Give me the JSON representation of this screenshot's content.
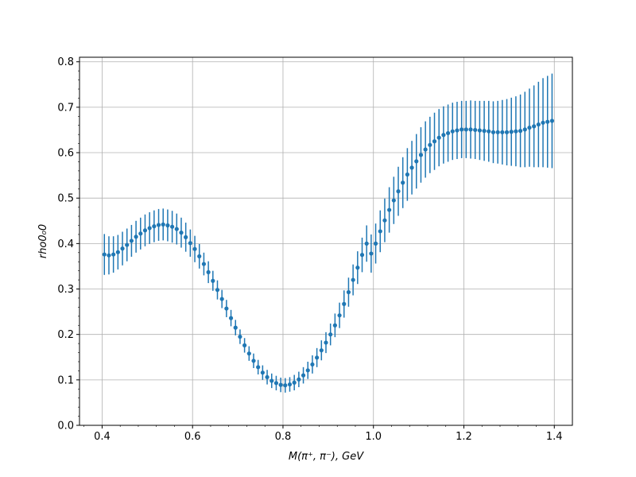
{
  "chart_data": {
    "type": "scatter",
    "title": "",
    "xlabel": "M(π⁺, π⁻), GeV",
    "ylabel": "rho0₀0",
    "xlim": [
      0.35,
      1.44
    ],
    "ylim": [
      0.0,
      0.81
    ],
    "xticks": [
      0.4,
      0.6,
      0.8,
      1.0,
      1.2,
      1.4
    ],
    "xtick_labels": [
      "0.4",
      "0.6",
      "0.8",
      "1.0",
      "1.2",
      "1.4"
    ],
    "yticks": [
      0.0,
      0.1,
      0.2,
      0.3,
      0.4,
      0.5,
      0.6,
      0.7,
      0.8
    ],
    "ytick_labels": [
      "0.0",
      "0.1",
      "0.2",
      "0.3",
      "0.4",
      "0.5",
      "0.6",
      "0.7",
      "0.8"
    ],
    "grid": true,
    "marker_color": "#1f77b4",
    "series": [
      {
        "name": "",
        "x": [
          0.405,
          0.415,
          0.425,
          0.435,
          0.445,
          0.455,
          0.465,
          0.475,
          0.485,
          0.495,
          0.505,
          0.515,
          0.525,
          0.535,
          0.545,
          0.555,
          0.565,
          0.575,
          0.585,
          0.595,
          0.605,
          0.615,
          0.625,
          0.635,
          0.645,
          0.655,
          0.665,
          0.675,
          0.685,
          0.695,
          0.705,
          0.715,
          0.725,
          0.735,
          0.745,
          0.755,
          0.765,
          0.775,
          0.785,
          0.795,
          0.805,
          0.815,
          0.825,
          0.835,
          0.845,
          0.855,
          0.865,
          0.875,
          0.885,
          0.895,
          0.905,
          0.915,
          0.925,
          0.935,
          0.945,
          0.955,
          0.965,
          0.975,
          0.985,
          0.995,
          1.005,
          1.015,
          1.025,
          1.035,
          1.045,
          1.055,
          1.065,
          1.075,
          1.085,
          1.095,
          1.105,
          1.115,
          1.125,
          1.135,
          1.145,
          1.155,
          1.165,
          1.175,
          1.185,
          1.195,
          1.205,
          1.215,
          1.225,
          1.235,
          1.245,
          1.255,
          1.265,
          1.275,
          1.285,
          1.295,
          1.305,
          1.315,
          1.325,
          1.335,
          1.345,
          1.355,
          1.365,
          1.375,
          1.385,
          1.395
        ],
        "y": [
          0.376,
          0.374,
          0.376,
          0.381,
          0.389,
          0.397,
          0.406,
          0.415,
          0.422,
          0.429,
          0.434,
          0.438,
          0.441,
          0.442,
          0.44,
          0.437,
          0.432,
          0.424,
          0.414,
          0.401,
          0.388,
          0.372,
          0.355,
          0.337,
          0.318,
          0.298,
          0.278,
          0.257,
          0.236,
          0.215,
          0.195,
          0.176,
          0.158,
          0.142,
          0.128,
          0.116,
          0.106,
          0.098,
          0.093,
          0.089,
          0.088,
          0.09,
          0.094,
          0.101,
          0.11,
          0.121,
          0.134,
          0.149,
          0.165,
          0.182,
          0.2,
          0.22,
          0.242,
          0.267,
          0.293,
          0.32,
          0.347,
          0.375,
          0.4,
          0.378,
          0.4,
          0.427,
          0.451,
          0.474,
          0.495,
          0.515,
          0.534,
          0.552,
          0.567,
          0.581,
          0.595,
          0.607,
          0.617,
          0.625,
          0.633,
          0.639,
          0.643,
          0.647,
          0.649,
          0.651,
          0.651,
          0.651,
          0.65,
          0.649,
          0.648,
          0.647,
          0.645,
          0.645,
          0.645,
          0.645,
          0.646,
          0.647,
          0.648,
          0.651,
          0.655,
          0.658,
          0.662,
          0.666,
          0.668,
          0.67
        ],
        "yerr": [
          0.045,
          0.042,
          0.04,
          0.038,
          0.037,
          0.036,
          0.035,
          0.035,
          0.035,
          0.035,
          0.035,
          0.035,
          0.035,
          0.035,
          0.035,
          0.035,
          0.034,
          0.033,
          0.032,
          0.03,
          0.029,
          0.027,
          0.025,
          0.024,
          0.022,
          0.021,
          0.02,
          0.019,
          0.018,
          0.017,
          0.016,
          0.016,
          0.016,
          0.016,
          0.016,
          0.016,
          0.016,
          0.016,
          0.016,
          0.016,
          0.016,
          0.016,
          0.017,
          0.017,
          0.018,
          0.019,
          0.02,
          0.021,
          0.022,
          0.023,
          0.024,
          0.026,
          0.028,
          0.03,
          0.032,
          0.034,
          0.036,
          0.038,
          0.04,
          0.042,
          0.044,
          0.046,
          0.048,
          0.05,
          0.052,
          0.054,
          0.056,
          0.058,
          0.059,
          0.06,
          0.061,
          0.062,
          0.062,
          0.063,
          0.063,
          0.063,
          0.063,
          0.063,
          0.063,
          0.063,
          0.063,
          0.064,
          0.064,
          0.065,
          0.066,
          0.067,
          0.068,
          0.069,
          0.071,
          0.073,
          0.075,
          0.077,
          0.08,
          0.083,
          0.086,
          0.09,
          0.094,
          0.098,
          0.101,
          0.104
        ]
      }
    ]
  }
}
